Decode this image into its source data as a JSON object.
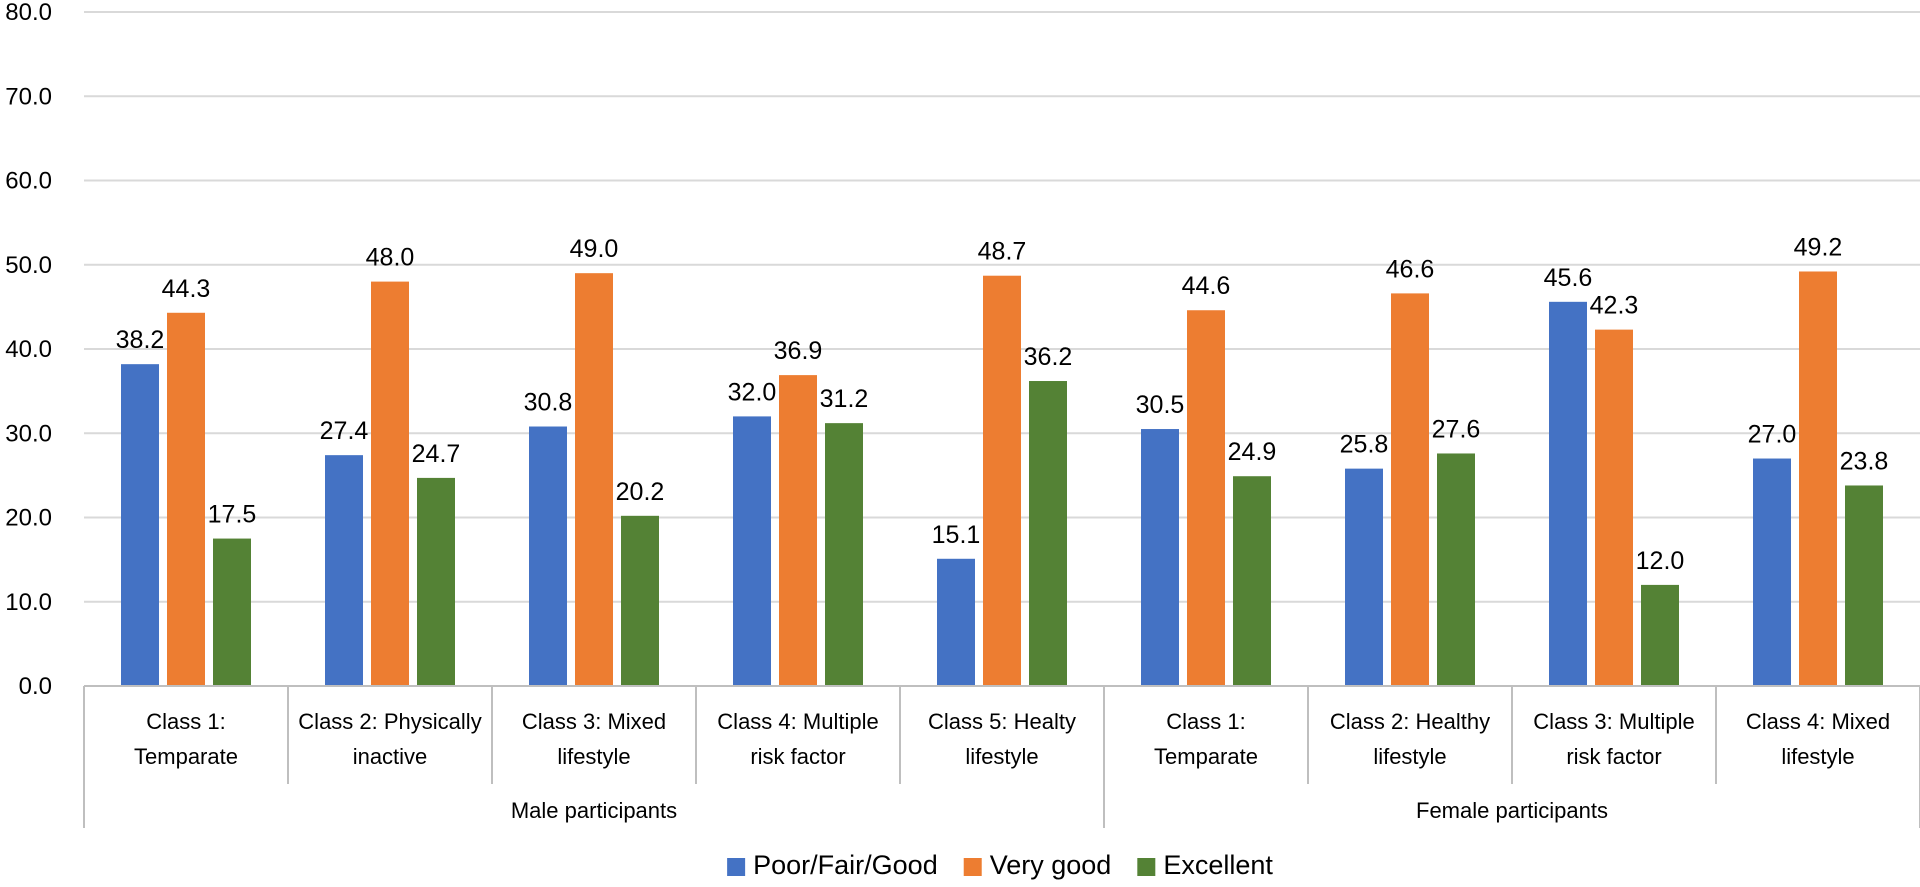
{
  "chart_data": {
    "type": "bar",
    "title": "",
    "xlabel": "",
    "ylabel": "",
    "ylim": [
      0,
      80
    ],
    "yticks": [
      "0.0",
      "10.0",
      "20.0",
      "30.0",
      "40.0",
      "50.0",
      "60.0",
      "70.0",
      "80.0"
    ],
    "grid": true,
    "legend_position": "bottom",
    "groups": [
      {
        "name": "Male participants",
        "categories": [
          [
            "Class 1:",
            "Temparate"
          ],
          [
            "Class 2: Physically",
            "inactive"
          ],
          [
            "Class 3: Mixed",
            "lifestyle"
          ],
          [
            "Class 4: Multiple",
            "risk factor"
          ],
          [
            "Class 5: Healty",
            "lifestyle"
          ]
        ]
      },
      {
        "name": "Female participants",
        "categories": [
          [
            "Class 1:",
            "Temparate"
          ],
          [
            "Class 2: Healthy",
            "lifestyle"
          ],
          [
            "Class 3: Multiple",
            "risk factor"
          ],
          [
            "Class 4: Mixed",
            "lifestyle"
          ]
        ]
      }
    ],
    "series": [
      {
        "name": "Poor/Fair/Good",
        "color": "#4472C4",
        "values": [
          38.2,
          27.4,
          30.8,
          32.0,
          15.1,
          30.5,
          25.8,
          45.6,
          27.0
        ]
      },
      {
        "name": "Very good",
        "color": "#ED7D31",
        "values": [
          44.3,
          48.0,
          49.0,
          36.9,
          48.7,
          44.6,
          46.6,
          42.3,
          49.2
        ]
      },
      {
        "name": "Excellent",
        "color": "#548235",
        "values": [
          17.5,
          24.7,
          20.2,
          31.2,
          36.2,
          24.9,
          27.6,
          12.0,
          23.8
        ]
      }
    ]
  }
}
